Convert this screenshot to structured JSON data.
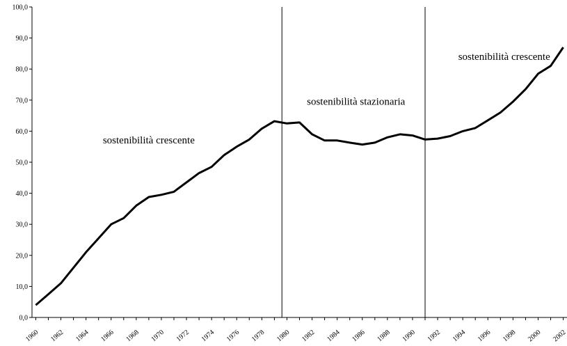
{
  "chart_data": {
    "type": "line",
    "title": "",
    "xlabel": "",
    "ylabel": "",
    "ylim": [
      0,
      100
    ],
    "yticks": [
      "0,0",
      "10,0",
      "20,0",
      "30,0",
      "40,0",
      "50,0",
      "60,0",
      "70,0",
      "80,0",
      "90,0",
      "100,0"
    ],
    "xtick_labels": [
      "1960",
      "1962",
      "1964",
      "1966",
      "1968",
      "1970",
      "1972",
      "1974",
      "1976",
      "1978",
      "1980",
      "1982",
      "1984",
      "1986",
      "1988",
      "1990",
      "1992",
      "1994",
      "1996",
      "1998",
      "2000",
      "2002"
    ],
    "grid": false,
    "legend": "none",
    "series_color": "#000000",
    "x": [
      1960,
      1961,
      1962,
      1963,
      1964,
      1965,
      1966,
      1967,
      1968,
      1969,
      1970,
      1971,
      1972,
      1973,
      1974,
      1975,
      1976,
      1977,
      1978,
      1979,
      1980,
      1981,
      1982,
      1983,
      1984,
      1985,
      1986,
      1987,
      1988,
      1989,
      1990,
      1991,
      1992,
      1993,
      1994,
      1995,
      1996,
      1997,
      1998,
      1999,
      2000,
      2001,
      2002
    ],
    "values": [
      4.0,
      7.5,
      11.0,
      16.0,
      21.0,
      25.5,
      30.0,
      32.0,
      36.0,
      38.8,
      39.5,
      40.5,
      43.5,
      46.5,
      48.5,
      52.3,
      55.0,
      57.3,
      60.8,
      63.2,
      62.5,
      62.8,
      59.0,
      57.0,
      57.0,
      56.3,
      55.7,
      56.3,
      58.0,
      59.0,
      58.6,
      57.3,
      57.6,
      58.4,
      60.0,
      61.0,
      63.5,
      66.0,
      69.5,
      73.5,
      78.5,
      81.0,
      87.0
    ],
    "dividers": [
      1979.6,
      1991.0
    ],
    "annotations": [
      {
        "text": "sostenibilità crescente",
        "x": 1969.0,
        "y": 56.0
      },
      {
        "text": "sostenibilità stazionaria",
        "x": 1985.5,
        "y": 68.5
      },
      {
        "text": "sostenibilità crescente",
        "x": 1997.3,
        "y": 83.0
      }
    ]
  }
}
